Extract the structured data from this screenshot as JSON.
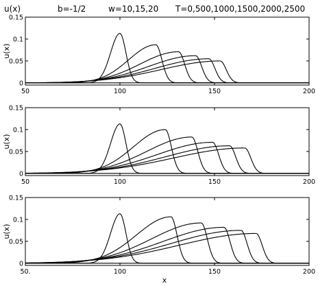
{
  "chart_data": {
    "type": "line",
    "title": [
      "u(x)",
      "b=-1/2",
      "w=10,15,20",
      "T=0,500,1000,1500,2000,2500"
    ],
    "panels": [
      {
        "ylabel": "u(x)",
        "xlabel": "",
        "xlim": [
          50,
          200
        ],
        "ylim": [
          -0.005,
          0.15
        ],
        "xticks": [
          "50",
          "100",
          "150",
          "200"
        ],
        "yticks": [
          {
            "value": 0.15,
            "label": "0.15"
          },
          {
            "value": 0.1,
            "label": "0.1"
          },
          {
            "value": 0.05,
            "label": "0.05"
          },
          {
            "value": 0,
            "label": "0"
          }
        ],
        "series": [
          {
            "T": 0,
            "peak_x": 100,
            "peak_u": 0.113
          },
          {
            "T": 500,
            "peak_x": 119,
            "peak_u": 0.087
          },
          {
            "T": 1000,
            "peak_x": 131,
            "peak_u": 0.071
          },
          {
            "T": 1500,
            "peak_x": 140,
            "peak_u": 0.062
          },
          {
            "T": 2000,
            "peak_x": 147,
            "peak_u": 0.055
          },
          {
            "T": 2500,
            "peak_x": 153,
            "peak_u": 0.05
          }
        ]
      },
      {
        "ylabel": "u(x)",
        "xlabel": "",
        "xlim": [
          50,
          200
        ],
        "ylim": [
          -0.005,
          0.15
        ],
        "xticks": [
          "50",
          "100",
          "150",
          "200"
        ],
        "yticks": [
          {
            "value": 0.15,
            "label": "0.15"
          },
          {
            "value": 0.1,
            "label": "0.1"
          },
          {
            "value": 0.05,
            "label": "0.05"
          },
          {
            "value": 0,
            "label": "0"
          }
        ],
        "series": [
          {
            "T": 0,
            "peak_x": 100,
            "peak_u": 0.113
          },
          {
            "T": 500,
            "peak_x": 124,
            "peak_u": 0.1
          },
          {
            "T": 1000,
            "peak_x": 138,
            "peak_u": 0.083
          },
          {
            "T": 1500,
            "peak_x": 149,
            "peak_u": 0.071
          },
          {
            "T": 2000,
            "peak_x": 158,
            "peak_u": 0.063
          },
          {
            "T": 2500,
            "peak_x": 166,
            "peak_u": 0.058
          }
        ]
      },
      {
        "ylabel": "u(x)",
        "xlabel": "x",
        "xlim": [
          50,
          200
        ],
        "ylim": [
          -0.005,
          0.15
        ],
        "xticks": [
          "50.",
          "100",
          "150",
          "200"
        ],
        "yticks": [
          {
            "value": 0.15,
            "label": "0.15"
          },
          {
            "value": 0.1,
            "label": "0.1"
          },
          {
            "value": 0.05,
            "label": "0.05"
          },
          {
            "value": 0,
            "label": "0"
          }
        ],
        "series": [
          {
            "T": 0,
            "peak_x": 100,
            "peak_u": 0.113
          },
          {
            "T": 500,
            "peak_x": 127,
            "peak_u": 0.106
          },
          {
            "T": 1000,
            "peak_x": 143,
            "peak_u": 0.092
          },
          {
            "T": 1500,
            "peak_x": 155,
            "peak_u": 0.082
          },
          {
            "T": 2000,
            "peak_x": 164,
            "peak_u": 0.075
          },
          {
            "T": 2500,
            "peak_x": 172,
            "peak_u": 0.068
          }
        ]
      }
    ]
  }
}
